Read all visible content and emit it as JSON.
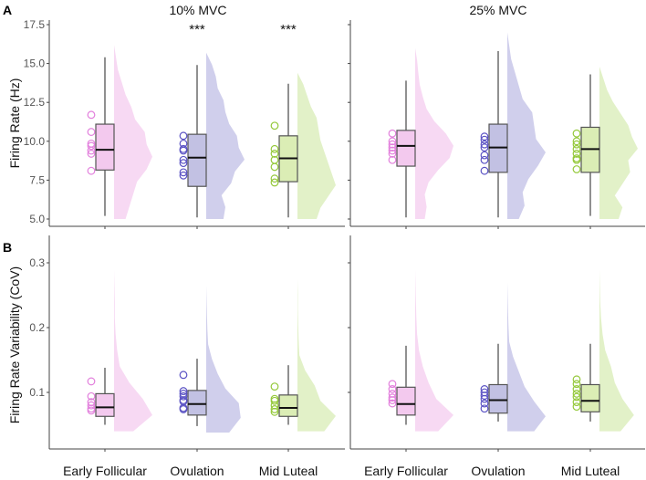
{
  "chart_data": {
    "type": "raincloud",
    "panel_labels": [
      "A",
      "B"
    ],
    "column_titles": [
      "10% MVC",
      "25% MVC"
    ],
    "categories": [
      "Early Follicular",
      "Ovulation",
      "Mid Luteal"
    ],
    "colors": {
      "fill": [
        "#f3c9ee",
        "#c2c1e3",
        "#dbedb5"
      ],
      "violin": [
        "#f7d9f3",
        "#d0cfec",
        "#e2f1c8"
      ],
      "points": [
        "#e27fdc",
        "#5a52c4",
        "#94c83a"
      ]
    },
    "rows": [
      {
        "ylabel": "Firing Rate (Hz)",
        "ylim": [
          5.0,
          17.5
        ],
        "yticks": [
          "5.0",
          "7.5",
          "10.0",
          "12.5",
          "15.0",
          "17.5"
        ],
        "ytick_values": [
          5,
          7.5,
          10,
          12.5,
          15,
          17.5
        ],
        "panels": [
          {
            "significance": [
              "",
              "***",
              "***"
            ],
            "groups": [
              {
                "whisker": [
                  5.2,
                  15.4
                ],
                "box": [
                  8.15,
                  11.1
                ],
                "median": 9.45,
                "points": [
                  11.7,
                  10.6,
                  9.85,
                  9.7,
                  9.4,
                  9.2,
                  8.1
                ],
                "violin_range": [
                  5.0,
                  16.2
                ],
                "density": [
                  0.3,
                  0.4,
                  0.5,
                  0.6,
                  0.85,
                  1.0,
                  0.85,
                  0.8,
                  0.55,
                  0.45,
                  0.3,
                  0.2,
                  0.1,
                  0.05,
                  0
                ]
              },
              {
                "whisker": [
                  5.1,
                  14.9
                ],
                "box": [
                  7.1,
                  10.45
                ],
                "median": 8.95,
                "points": [
                  10.35,
                  9.85,
                  9.5,
                  9.4,
                  8.8,
                  8.6,
                  8.0,
                  7.8
                ],
                "violin_range": [
                  5.0,
                  15.7
                ],
                "density": [
                  0.45,
                  0.5,
                  0.4,
                  0.65,
                  0.75,
                  1.0,
                  0.85,
                  0.8,
                  0.6,
                  0.5,
                  0.45,
                  0.3,
                  0.25,
                  0.15,
                  0
                ]
              },
              {
                "whisker": [
                  5.1,
                  13.7
                ],
                "box": [
                  7.4,
                  10.35
                ],
                "median": 8.9,
                "points": [
                  11.0,
                  9.5,
                  9.2,
                  8.8,
                  8.35,
                  7.6,
                  7.35
                ],
                "violin_range": [
                  5.0,
                  14.4
                ],
                "density": [
                  0.5,
                  0.6,
                  0.8,
                  1.0,
                  0.9,
                  0.8,
                  0.7,
                  0.6,
                  0.55,
                  0.5,
                  0.35,
                  0.25,
                  0.15,
                  0
                ]
              }
            ]
          },
          {
            "significance": [
              "",
              "",
              ""
            ],
            "groups": [
              {
                "whisker": [
                  5.1,
                  13.9
                ],
                "box": [
                  8.4,
                  10.7
                ],
                "median": 9.7,
                "points": [
                  10.5,
                  10.0,
                  9.8,
                  9.6,
                  9.4,
                  9.2,
                  8.8
                ],
                "violin_range": [
                  5.0,
                  16.0
                ],
                "density": [
                  0.25,
                  0.3,
                  0.25,
                  0.35,
                  0.6,
                  0.9,
                  1.0,
                  0.8,
                  0.5,
                  0.3,
                  0.2,
                  0.12,
                  0.08,
                  0.05,
                  0
                ]
              },
              {
                "whisker": [
                  5.1,
                  15.8
                ],
                "box": [
                  8.0,
                  11.1
                ],
                "median": 9.6,
                "points": [
                  10.3,
                  10.1,
                  9.8,
                  9.6,
                  9.1,
                  8.8,
                  8.1
                ],
                "violin_range": [
                  5.0,
                  17.0
                ],
                "density": [
                  0.3,
                  0.45,
                  0.4,
                  0.55,
                  0.8,
                  1.0,
                  0.75,
                  0.7,
                  0.65,
                  0.4,
                  0.3,
                  0.2,
                  0.1,
                  0.05,
                  0
                ]
              },
              {
                "whisker": [
                  5.2,
                  14.3
                ],
                "box": [
                  8.0,
                  10.9
                ],
                "median": 9.5,
                "points": [
                  10.5,
                  10.0,
                  9.8,
                  9.5,
                  9.2,
                  8.9,
                  8.8,
                  8.2
                ],
                "violin_range": [
                  5.0,
                  14.8
                ],
                "density": [
                  0.5,
                  0.6,
                  0.4,
                  0.6,
                  0.8,
                  0.75,
                  1.0,
                  0.85,
                  0.75,
                  0.55,
                  0.35,
                  0.2,
                  0.1,
                  0
                ]
              }
            ]
          }
        ]
      },
      {
        "ylabel": "Firing Rate Variability (CoV)",
        "ylim": [
          0.03,
          0.32
        ],
        "yticks": [
          "0.1",
          "0.2",
          "0.3"
        ],
        "ytick_values": [
          0.1,
          0.2,
          0.3
        ],
        "panels": [
          {
            "significance": [
              "",
              "",
              ""
            ],
            "groups": [
              {
                "whisker": [
                  0.05,
                  0.138
                ],
                "box": [
                  0.063,
                  0.098
                ],
                "median": 0.077,
                "points": [
                  0.117,
                  0.094,
                  0.085,
                  0.08,
                  0.075,
                  0.072
                ],
                "violin_range": [
                  0.04,
                  0.29
                ],
                "density": [
                  0.5,
                  1.0,
                  0.75,
                  0.4,
                  0.15,
                  0.08,
                  0.04,
                  0.02,
                  0.02,
                  0.01,
                  0
                ]
              },
              {
                "whisker": [
                  0.048,
                  0.152
                ],
                "box": [
                  0.065,
                  0.103
                ],
                "median": 0.082,
                "points": [
                  0.127,
                  0.102,
                  0.098,
                  0.094,
                  0.088,
                  0.086,
                  0.076,
                  0.074
                ],
                "violin_range": [
                  0.038,
                  0.265
                ],
                "density": [
                  0.6,
                  0.9,
                  0.85,
                  0.5,
                  0.3,
                  0.15,
                  0.05,
                  0.03,
                  0.02,
                  0.01,
                  0
                ]
              },
              {
                "whisker": [
                  0.05,
                  0.142
                ],
                "box": [
                  0.063,
                  0.096
                ],
                "median": 0.076,
                "points": [
                  0.109,
                  0.09,
                  0.087,
                  0.08,
                  0.074,
                  0.07
                ],
                "violin_range": [
                  0.04,
                  0.275
                ],
                "density": [
                  0.7,
                  1.0,
                  0.6,
                  0.45,
                  0.2,
                  0.05,
                  0.03,
                  0.02,
                  0.01,
                  0.01,
                  0
                ]
              }
            ]
          },
          {
            "significance": [
              "",
              "",
              ""
            ],
            "groups": [
              {
                "whisker": [
                  0.05,
                  0.172
                ],
                "box": [
                  0.065,
                  0.108
                ],
                "median": 0.082,
                "points": [
                  0.113,
                  0.105,
                  0.098,
                  0.092,
                  0.088,
                  0.083
                ],
                "violin_range": [
                  0.04,
                  0.29
                ],
                "density": [
                  0.6,
                  1.0,
                  0.55,
                  0.35,
                  0.2,
                  0.1,
                  0.05,
                  0.03,
                  0.02,
                  0.01,
                  0
                ]
              },
              {
                "whisker": [
                  0.055,
                  0.175
                ],
                "box": [
                  0.068,
                  0.112
                ],
                "median": 0.088,
                "points": [
                  0.105,
                  0.1,
                  0.095,
                  0.09,
                  0.083,
                  0.075
                ],
                "violin_range": [
                  0.04,
                  0.27
                ],
                "density": [
                  0.7,
                  1.0,
                  0.7,
                  0.45,
                  0.3,
                  0.15,
                  0.05,
                  0.03,
                  0.02,
                  0.01,
                  0
                ]
              },
              {
                "whisker": [
                  0.055,
                  0.175
                ],
                "box": [
                  0.07,
                  0.112
                ],
                "median": 0.087,
                "points": [
                  0.12,
                  0.113,
                  0.105,
                  0.098,
                  0.093,
                  0.085,
                  0.078
                ],
                "violin_range": [
                  0.04,
                  0.29
                ],
                "density": [
                  0.55,
                  0.9,
                  0.6,
                  0.4,
                  0.3,
                  0.15,
                  0.08,
                  0.04,
                  0.02,
                  0.01,
                  0
                ]
              }
            ]
          }
        ]
      }
    ]
  }
}
